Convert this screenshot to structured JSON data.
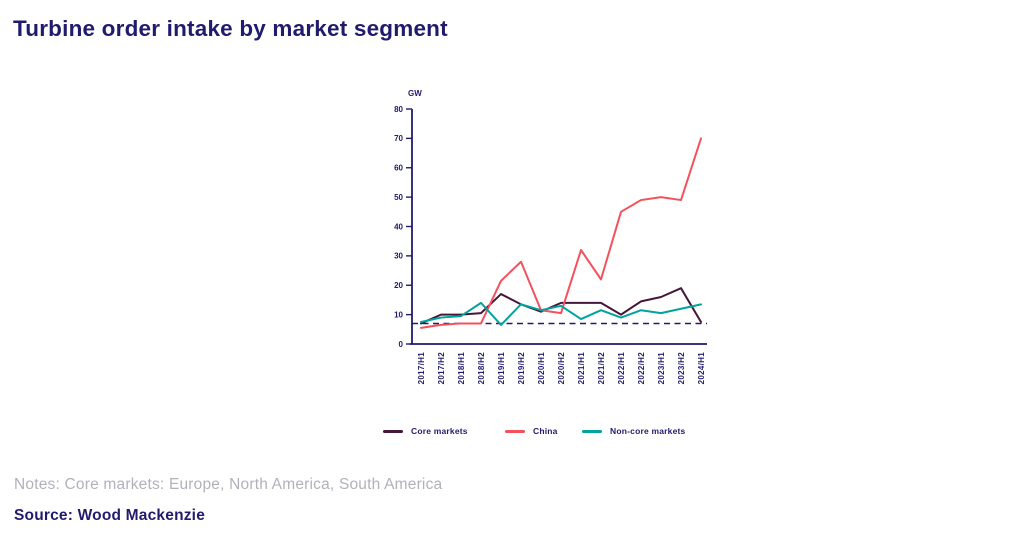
{
  "header": {
    "title": "Turbine order intake by market segment"
  },
  "footer": {
    "notes": "Notes: Core markets: Europe, North America, South America",
    "source": "Source: Wood Mackenzie"
  },
  "colors": {
    "navy": "#211B6E",
    "core": "#45173A",
    "china": "#F4515C",
    "noncore": "#00A39E",
    "notes_gray": "#B2B1BB"
  },
  "chart_data": {
    "type": "line",
    "unit_label": "GW",
    "categories": [
      "2017/H1",
      "2017/H2",
      "2018/H1",
      "2018/H2",
      "2019/H1",
      "2019/H2",
      "2020/H1",
      "2020/H2",
      "2021/H1",
      "2021/H2",
      "2022/H1",
      "2022/H2",
      "2023/H1",
      "2023/H2",
      "2024/H1"
    ],
    "series": [
      {
        "name": "Core markets",
        "color_key": "core",
        "values": [
          7,
          10,
          10,
          10.5,
          17,
          13.5,
          11,
          14,
          14,
          14,
          10,
          14.5,
          16,
          19,
          7.5
        ]
      },
      {
        "name": "China",
        "color_key": "china",
        "values": [
          5.5,
          6.5,
          7,
          7,
          21.5,
          28,
          11.5,
          10.5,
          32,
          22,
          45,
          49,
          50,
          49,
          70
        ]
      },
      {
        "name": "Non-core markets",
        "color_key": "noncore",
        "values": [
          7.5,
          9,
          9.5,
          14,
          6.5,
          13.5,
          11.5,
          13,
          8.5,
          11.5,
          9,
          11.5,
          10.5,
          12,
          13.5
        ]
      }
    ],
    "baseline_dashed": 7,
    "ylim": [
      0,
      80
    ],
    "yticks": [
      0,
      10,
      20,
      30,
      40,
      50,
      60,
      70,
      80
    ],
    "grid": false,
    "legend_position": "bottom"
  }
}
